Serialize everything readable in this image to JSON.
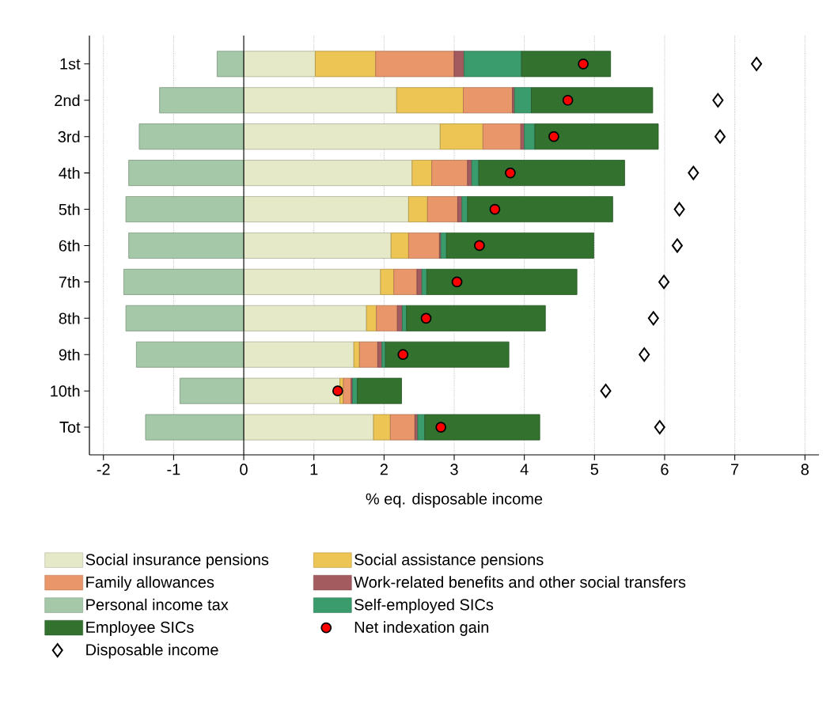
{
  "chart_data": {
    "type": "bar",
    "orientation": "horizontal",
    "stacked": true,
    "xlabel": "% eq. disposable income",
    "categories": [
      "1st",
      "2nd",
      "3rd",
      "4th",
      "5th",
      "6th",
      "7th",
      "8th",
      "9th",
      "10th",
      "Tot"
    ],
    "xlim": [
      -2.2,
      8.2
    ],
    "xticks": [
      -2,
      -1,
      0,
      1,
      2,
      3,
      4,
      5,
      6,
      7,
      8
    ],
    "grid": "x",
    "legend": "bottom",
    "ref_lines": [
      {
        "axis": "x",
        "value": 0,
        "color": "#000000",
        "line_style": "solid"
      }
    ],
    "series": [
      {
        "name": "Social insurance pensions",
        "color": "#e5e9c8",
        "values": [
          1.02,
          2.18,
          2.8,
          2.4,
          2.35,
          2.1,
          1.95,
          1.75,
          1.57,
          1.37,
          1.85
        ]
      },
      {
        "name": "Social assistance pensions",
        "color": "#ecc555",
        "values": [
          0.86,
          0.95,
          0.61,
          0.28,
          0.27,
          0.25,
          0.19,
          0.14,
          0.08,
          0.05,
          0.24
        ]
      },
      {
        "name": "Family allowances",
        "color": "#e9976a",
        "values": [
          1.12,
          0.7,
          0.54,
          0.51,
          0.43,
          0.44,
          0.33,
          0.3,
          0.26,
          0.11,
          0.35
        ]
      },
      {
        "name": "Work-related benefits and other social transfers",
        "color": "#a45b5f",
        "values": [
          0.14,
          0.03,
          0.05,
          0.06,
          0.06,
          0.02,
          0.07,
          0.07,
          0.06,
          0.02,
          0.04
        ]
      },
      {
        "name": "Personal income tax",
        "color": "#a5c8a8",
        "values": [
          -0.38,
          -1.2,
          -1.49,
          -1.64,
          -1.68,
          -1.64,
          -1.71,
          -1.68,
          -1.53,
          -0.91,
          -1.4
        ]
      },
      {
        "name": "Self-employed SICs",
        "color": "#3a9b6c",
        "values": [
          0.82,
          0.24,
          0.15,
          0.1,
          0.08,
          0.08,
          0.07,
          0.06,
          0.05,
          0.07,
          0.1
        ]
      },
      {
        "name": "Employee SICs",
        "color": "#33712f",
        "values": [
          1.27,
          1.73,
          1.76,
          2.08,
          2.07,
          2.1,
          2.14,
          1.98,
          1.76,
          0.63,
          1.64
        ]
      },
      {
        "name": "Net indexation gain",
        "type": "scatter",
        "marker": "circle",
        "color": "#ff0000",
        "values": [
          4.84,
          4.62,
          4.42,
          3.8,
          3.58,
          3.36,
          3.04,
          2.6,
          2.27,
          1.34,
          2.81
        ]
      },
      {
        "name": "Disposable income",
        "type": "scatter",
        "marker": "diamond",
        "color": "#000000",
        "values": [
          7.31,
          6.76,
          6.79,
          6.41,
          6.21,
          6.18,
          5.99,
          5.84,
          5.71,
          5.16,
          5.93
        ]
      }
    ]
  }
}
